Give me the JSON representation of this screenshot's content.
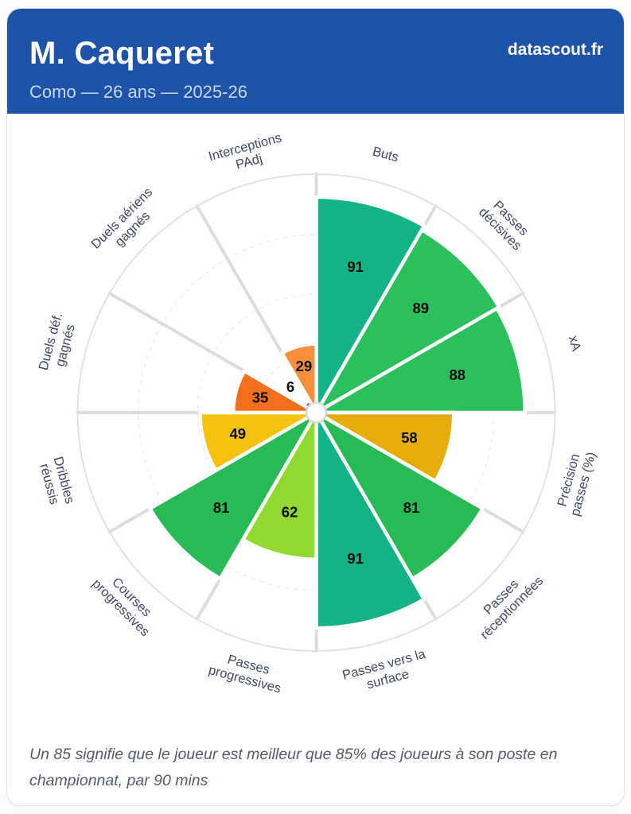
{
  "header": {
    "player_name": "M. Caqueret",
    "subtitle": "Como — 26 ans — 2025-26",
    "brand": "datascout.fr",
    "bg_color": "#1d53a8",
    "subtitle_color": "#c9d6ec"
  },
  "footer": {
    "note": "Un 85 signifie que le joueur est meilleur que 85% des joueurs à son poste en championnat, par 90 mins"
  },
  "chart_data": {
    "type": "pie",
    "subtype": "pizza-percentile-polar-bar",
    "title": "",
    "scale_max": 100,
    "grid_rings_pct": [
      25,
      50,
      75
    ],
    "start_angle_deg": 0,
    "direction": "clockwise",
    "categories": [
      "Buts",
      "Passes décisives",
      "xA",
      "Précision passes (%)",
      "Passes réceptionnées",
      "Passes vers la surface",
      "Passes progressives",
      "Courses progressives",
      "Dribbles réussis",
      "Duels déf. gagnés",
      "Duels aériens gagnés",
      "Interceptions PAdj"
    ],
    "category_label_lines": [
      [
        "Buts"
      ],
      [
        "Passes",
        "décisives"
      ],
      [
        "xA"
      ],
      [
        "Précision",
        "passes (%)"
      ],
      [
        "Passes",
        "réceptionnées"
      ],
      [
        "Passes vers la",
        "surface"
      ],
      [
        "Passes",
        "progressives"
      ],
      [
        "Courses",
        "progressives"
      ],
      [
        "Dribbles",
        "réussis"
      ],
      [
        "Duels déf.",
        "gagnés"
      ],
      [
        "Duels aériens",
        "gagnés"
      ],
      [
        "Interceptions",
        "PAdj"
      ]
    ],
    "values": [
      91,
      89,
      88,
      58,
      81,
      91,
      62,
      81,
      49,
      35,
      6,
      29
    ],
    "slice_colors": [
      "#14b385",
      "#2cc05c",
      "#2cc05c",
      "#e6ad0a",
      "#28bb55",
      "#14b385",
      "#90d930",
      "#28bb55",
      "#f6c211",
      "#f2701d",
      "#d62b2b",
      "#f78f3d"
    ],
    "grid_color": "#e9e9ee",
    "outer_ring_color": "#e1e1e6",
    "spoke_color": "#dcdce1",
    "slice_stroke_color": "#ffffff",
    "hub_fill": "#ffffff",
    "hub_stroke": "#d6d6db",
    "value_label_color": "#0b0b0b",
    "category_label_color": "#3d4a63"
  }
}
